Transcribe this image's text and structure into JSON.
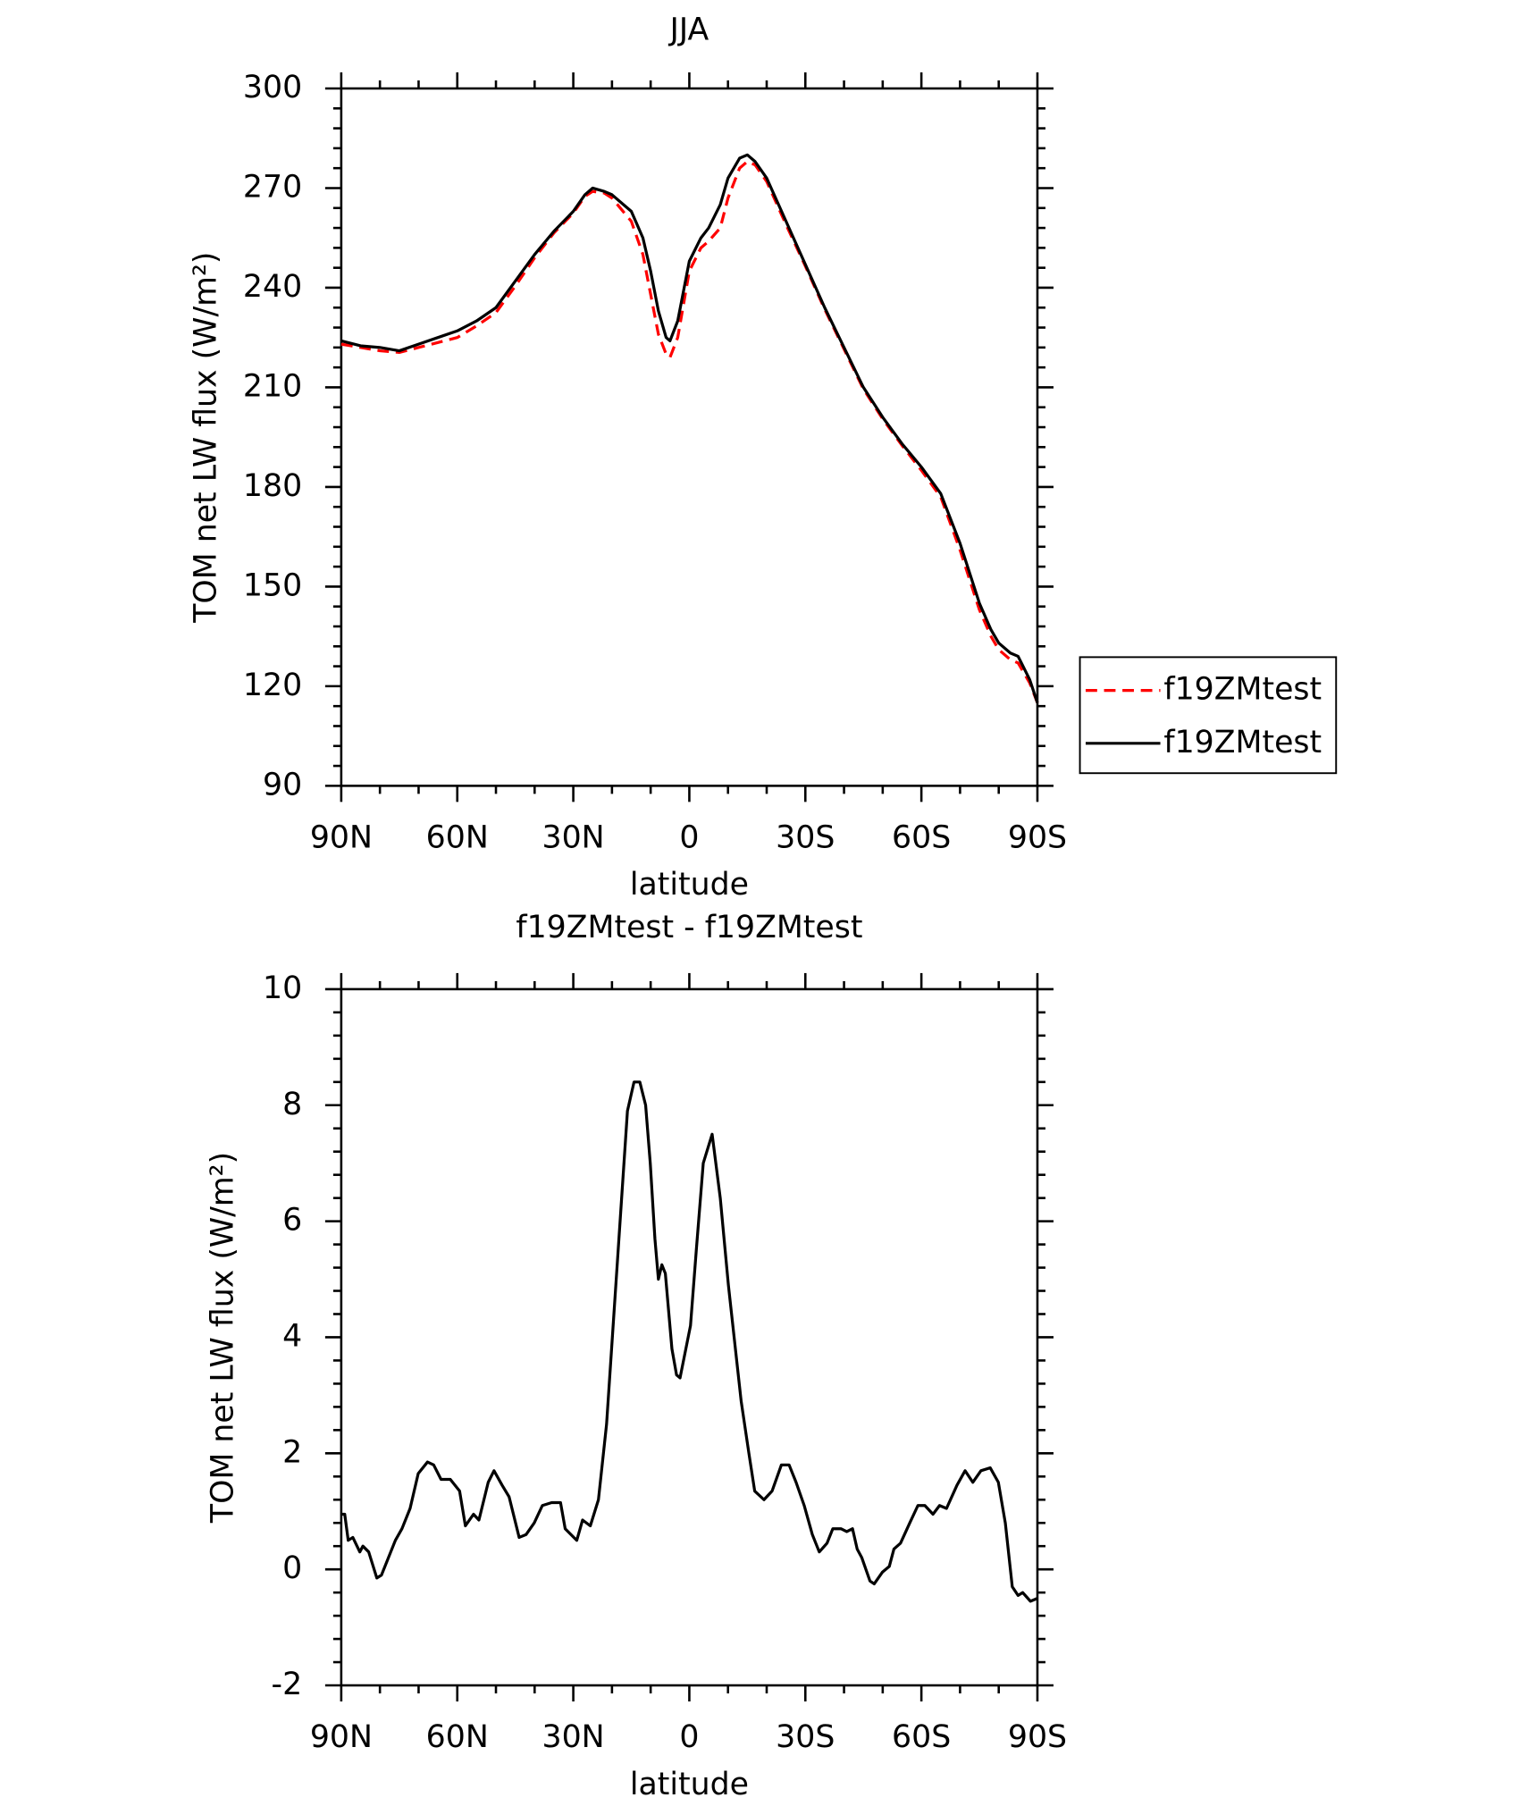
{
  "chart_data": [
    {
      "type": "line",
      "title": "JJA",
      "x_label": "latitude",
      "y_label": "TOM net LW flux (W/m²)",
      "xlim": [
        90,
        -90
      ],
      "xticks": [
        {
          "value": 90,
          "label": "90N"
        },
        {
          "value": 60,
          "label": "60N"
        },
        {
          "value": 30,
          "label": "30N"
        },
        0,
        {
          "value": -30,
          "label": "30S"
        },
        {
          "value": -60,
          "label": "60S"
        },
        {
          "value": -90,
          "label": "90S"
        }
      ],
      "ylim": [
        90,
        300
      ],
      "yticks": [
        90,
        120,
        150,
        180,
        210,
        240,
        270,
        300
      ],
      "x": [
        90,
        85,
        80,
        75,
        70,
        65,
        60,
        55,
        50,
        45,
        40,
        35,
        30,
        27,
        25,
        22,
        20,
        15,
        12,
        10,
        8,
        6,
        5,
        3,
        0,
        -3,
        -5,
        -8,
        -10,
        -13,
        -15,
        -17,
        -20,
        -25,
        -30,
        -35,
        -40,
        -45,
        -50,
        -55,
        -60,
        -65,
        -70,
        -75,
        -78,
        -80,
        -83,
        -85,
        -88,
        -90
      ],
      "legend": "right",
      "series": [
        {
          "name": "f19ZMtest",
          "color": "#ff0000",
          "dashed": true,
          "values": [
            223,
            222,
            221,
            220.5,
            222,
            223.5,
            225,
            228.5,
            232.5,
            240.5,
            249,
            256.5,
            262.5,
            267.5,
            269,
            268.5,
            267,
            260,
            250,
            238,
            226,
            220,
            219,
            225,
            245,
            252,
            254,
            258,
            267,
            276,
            278,
            277,
            272,
            259,
            246.5,
            233.5,
            221.5,
            209.5,
            200.5,
            192.5,
            185,
            177,
            161,
            143,
            135,
            131,
            128,
            127,
            121,
            115
          ]
        },
        {
          "name": "f19ZMtest",
          "color": "#000000",
          "dashed": false,
          "values": [
            224,
            222.5,
            222,
            221,
            223,
            225,
            227,
            230,
            234,
            242,
            250,
            257,
            263,
            268,
            270,
            269,
            268,
            263,
            255,
            245,
            233,
            225,
            224,
            230,
            248,
            255,
            258,
            265,
            273,
            279,
            280,
            278,
            273,
            260,
            247,
            234,
            222,
            210,
            201,
            193,
            186,
            178,
            163,
            145,
            137,
            133,
            130,
            129,
            122,
            115
          ]
        }
      ]
    },
    {
      "type": "line",
      "title": "f19ZMtest - f19ZMtest",
      "x_label": "latitude",
      "y_label": "TOM net LW flux (W/m²)",
      "xlim": [
        90,
        -90
      ],
      "xticks": [
        {
          "value": 90,
          "label": "90N"
        },
        {
          "value": 60,
          "label": "60N"
        },
        {
          "value": 30,
          "label": "30N"
        },
        0,
        {
          "value": -30,
          "label": "30S"
        },
        {
          "value": -60,
          "label": "60S"
        },
        {
          "value": -90,
          "label": "90S"
        }
      ],
      "ylim": [
        -2,
        10
      ],
      "yticks": [
        -2,
        0,
        2,
        4,
        6,
        8,
        10
      ],
      "x": [
        90,
        89.1,
        88.2,
        87,
        85.2,
        84.4,
        82.9,
        80.8,
        79.6,
        76,
        74.3,
        72.2,
        70.1,
        67.7,
        66.1,
        64.2,
        61.8,
        59.4,
        57.9,
        55.8,
        54.4,
        52,
        50.5,
        48.4,
        46.6,
        44,
        42.2,
        40.1,
        38,
        35.6,
        33.3,
        32.1,
        29.1,
        27.6,
        25.6,
        23.5,
        21.4,
        18.4,
        16,
        14.3,
        12.8,
        11.3,
        10.1,
        8.9,
        8,
        7.1,
        6.2,
        4.5,
        3.3,
        2.4,
        0.9,
        -0.3,
        -1.8,
        -3.6,
        -5.9,
        -8,
        -10.1,
        -13.4,
        -15.4,
        -16.9,
        -19.3,
        -21.4,
        -23.8,
        -25.8,
        -27.6,
        -29.7,
        -31.8,
        -33.6,
        -35.6,
        -37.1,
        -39.2,
        -40.7,
        -42.2,
        -43.4,
        -44.6,
        -46.7,
        -47.8,
        -49.9,
        -51.7,
        -52.9,
        -54.6,
        -57,
        -59.1,
        -60.9,
        -63,
        -64.7,
        -66.5,
        -69.2,
        -71.3,
        -73.3,
        -75.4,
        -77.8,
        -79.9,
        -81.7,
        -83.5,
        -85,
        -86.2,
        -88.2,
        -90
      ],
      "series": [
        {
          "color": "#000000",
          "values": [
            0.95,
            0.95,
            0.5,
            0.55,
            0.3,
            0.4,
            0.3,
            -0.15,
            -0.1,
            0.5,
            0.7,
            1.05,
            1.65,
            1.85,
            1.8,
            1.55,
            1.55,
            1.35,
            0.75,
            0.95,
            0.85,
            1.5,
            1.7,
            1.45,
            1.25,
            0.55,
            0.6,
            0.8,
            1.1,
            1.15,
            1.15,
            0.7,
            0.5,
            0.85,
            0.75,
            1.2,
            2.5,
            5.5,
            7.9,
            8.4,
            8.4,
            8.0,
            7,
            5.7,
            5,
            5.25,
            5.1,
            3.8,
            3.35,
            3.3,
            3.8,
            4.2,
            5.5,
            7,
            7.5,
            6.4,
            4.9,
            2.9,
            2,
            1.35,
            1.2,
            1.35,
            1.8,
            1.8,
            1.5,
            1.1,
            0.6,
            0.3,
            0.45,
            0.7,
            0.7,
            0.65,
            0.7,
            0.35,
            0.2,
            -0.2,
            -0.25,
            -0.05,
            0.05,
            0.35,
            0.45,
            0.8,
            1.1,
            1.1,
            0.95,
            1.1,
            1.05,
            1.45,
            1.7,
            1.5,
            1.7,
            1.75,
            1.5,
            0.8,
            -0.3,
            -0.45,
            -0.4,
            -0.55,
            -0.5
          ]
        }
      ]
    }
  ]
}
